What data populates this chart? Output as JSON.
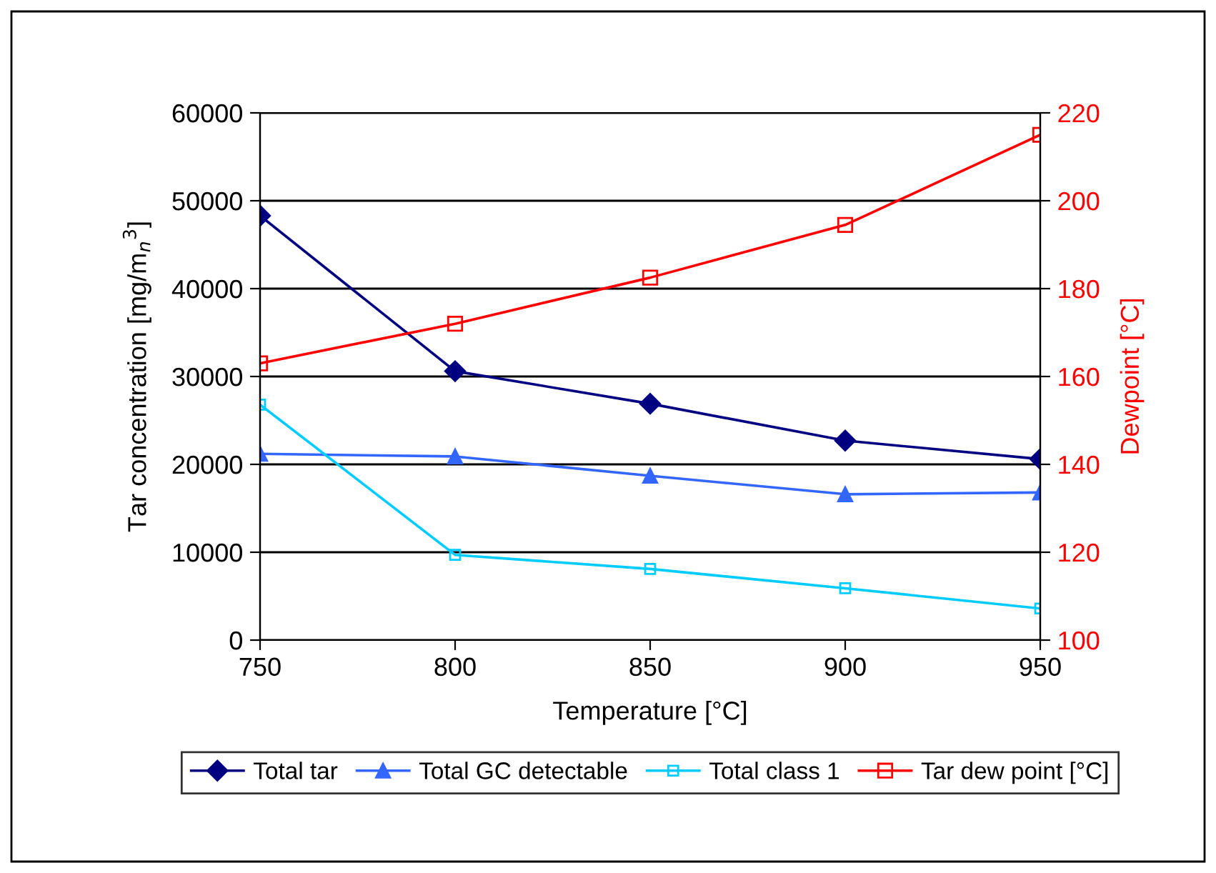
{
  "chart_data": {
    "type": "line",
    "xlabel": "Temperature [°C]",
    "ylabel": "Tar concentration [mg/m$_{n}$$^{3}$]",
    "y2label": "Dewpoint [°C]",
    "x": [
      750,
      800,
      850,
      900,
      950
    ],
    "xlim": [
      750,
      950
    ],
    "xticks": [
      750,
      800,
      850,
      900,
      950
    ],
    "ylim": [
      0,
      60000
    ],
    "yticks": [
      0,
      10000,
      20000,
      30000,
      40000,
      50000,
      60000
    ],
    "y2lim": [
      100,
      220
    ],
    "y2ticks": [
      100,
      120,
      140,
      160,
      180,
      200,
      220
    ],
    "grid": "y",
    "legend": "bottom",
    "line_style": "solid",
    "series": [
      {
        "name": "Total tar",
        "color": "#000080",
        "marker": "diamond",
        "values": [
          48300,
          30600,
          26900,
          22700,
          20600
        ]
      },
      {
        "name": "Total GC detectable",
        "color": "#3366ff",
        "marker": "triangle",
        "values": [
          21200,
          20900,
          18700,
          16600,
          16800
        ]
      },
      {
        "name": "Total class 1",
        "color": "#00ccff",
        "marker": "square",
        "values": [
          26800,
          9700,
          8100,
          5900,
          3600
        ]
      },
      {
        "name": "Tar dew point [°C]",
        "color": "#ff0000",
        "marker": "square",
        "axis": "y2",
        "values": [
          163,
          172,
          182.5,
          194.5,
          215
        ]
      }
    ]
  }
}
